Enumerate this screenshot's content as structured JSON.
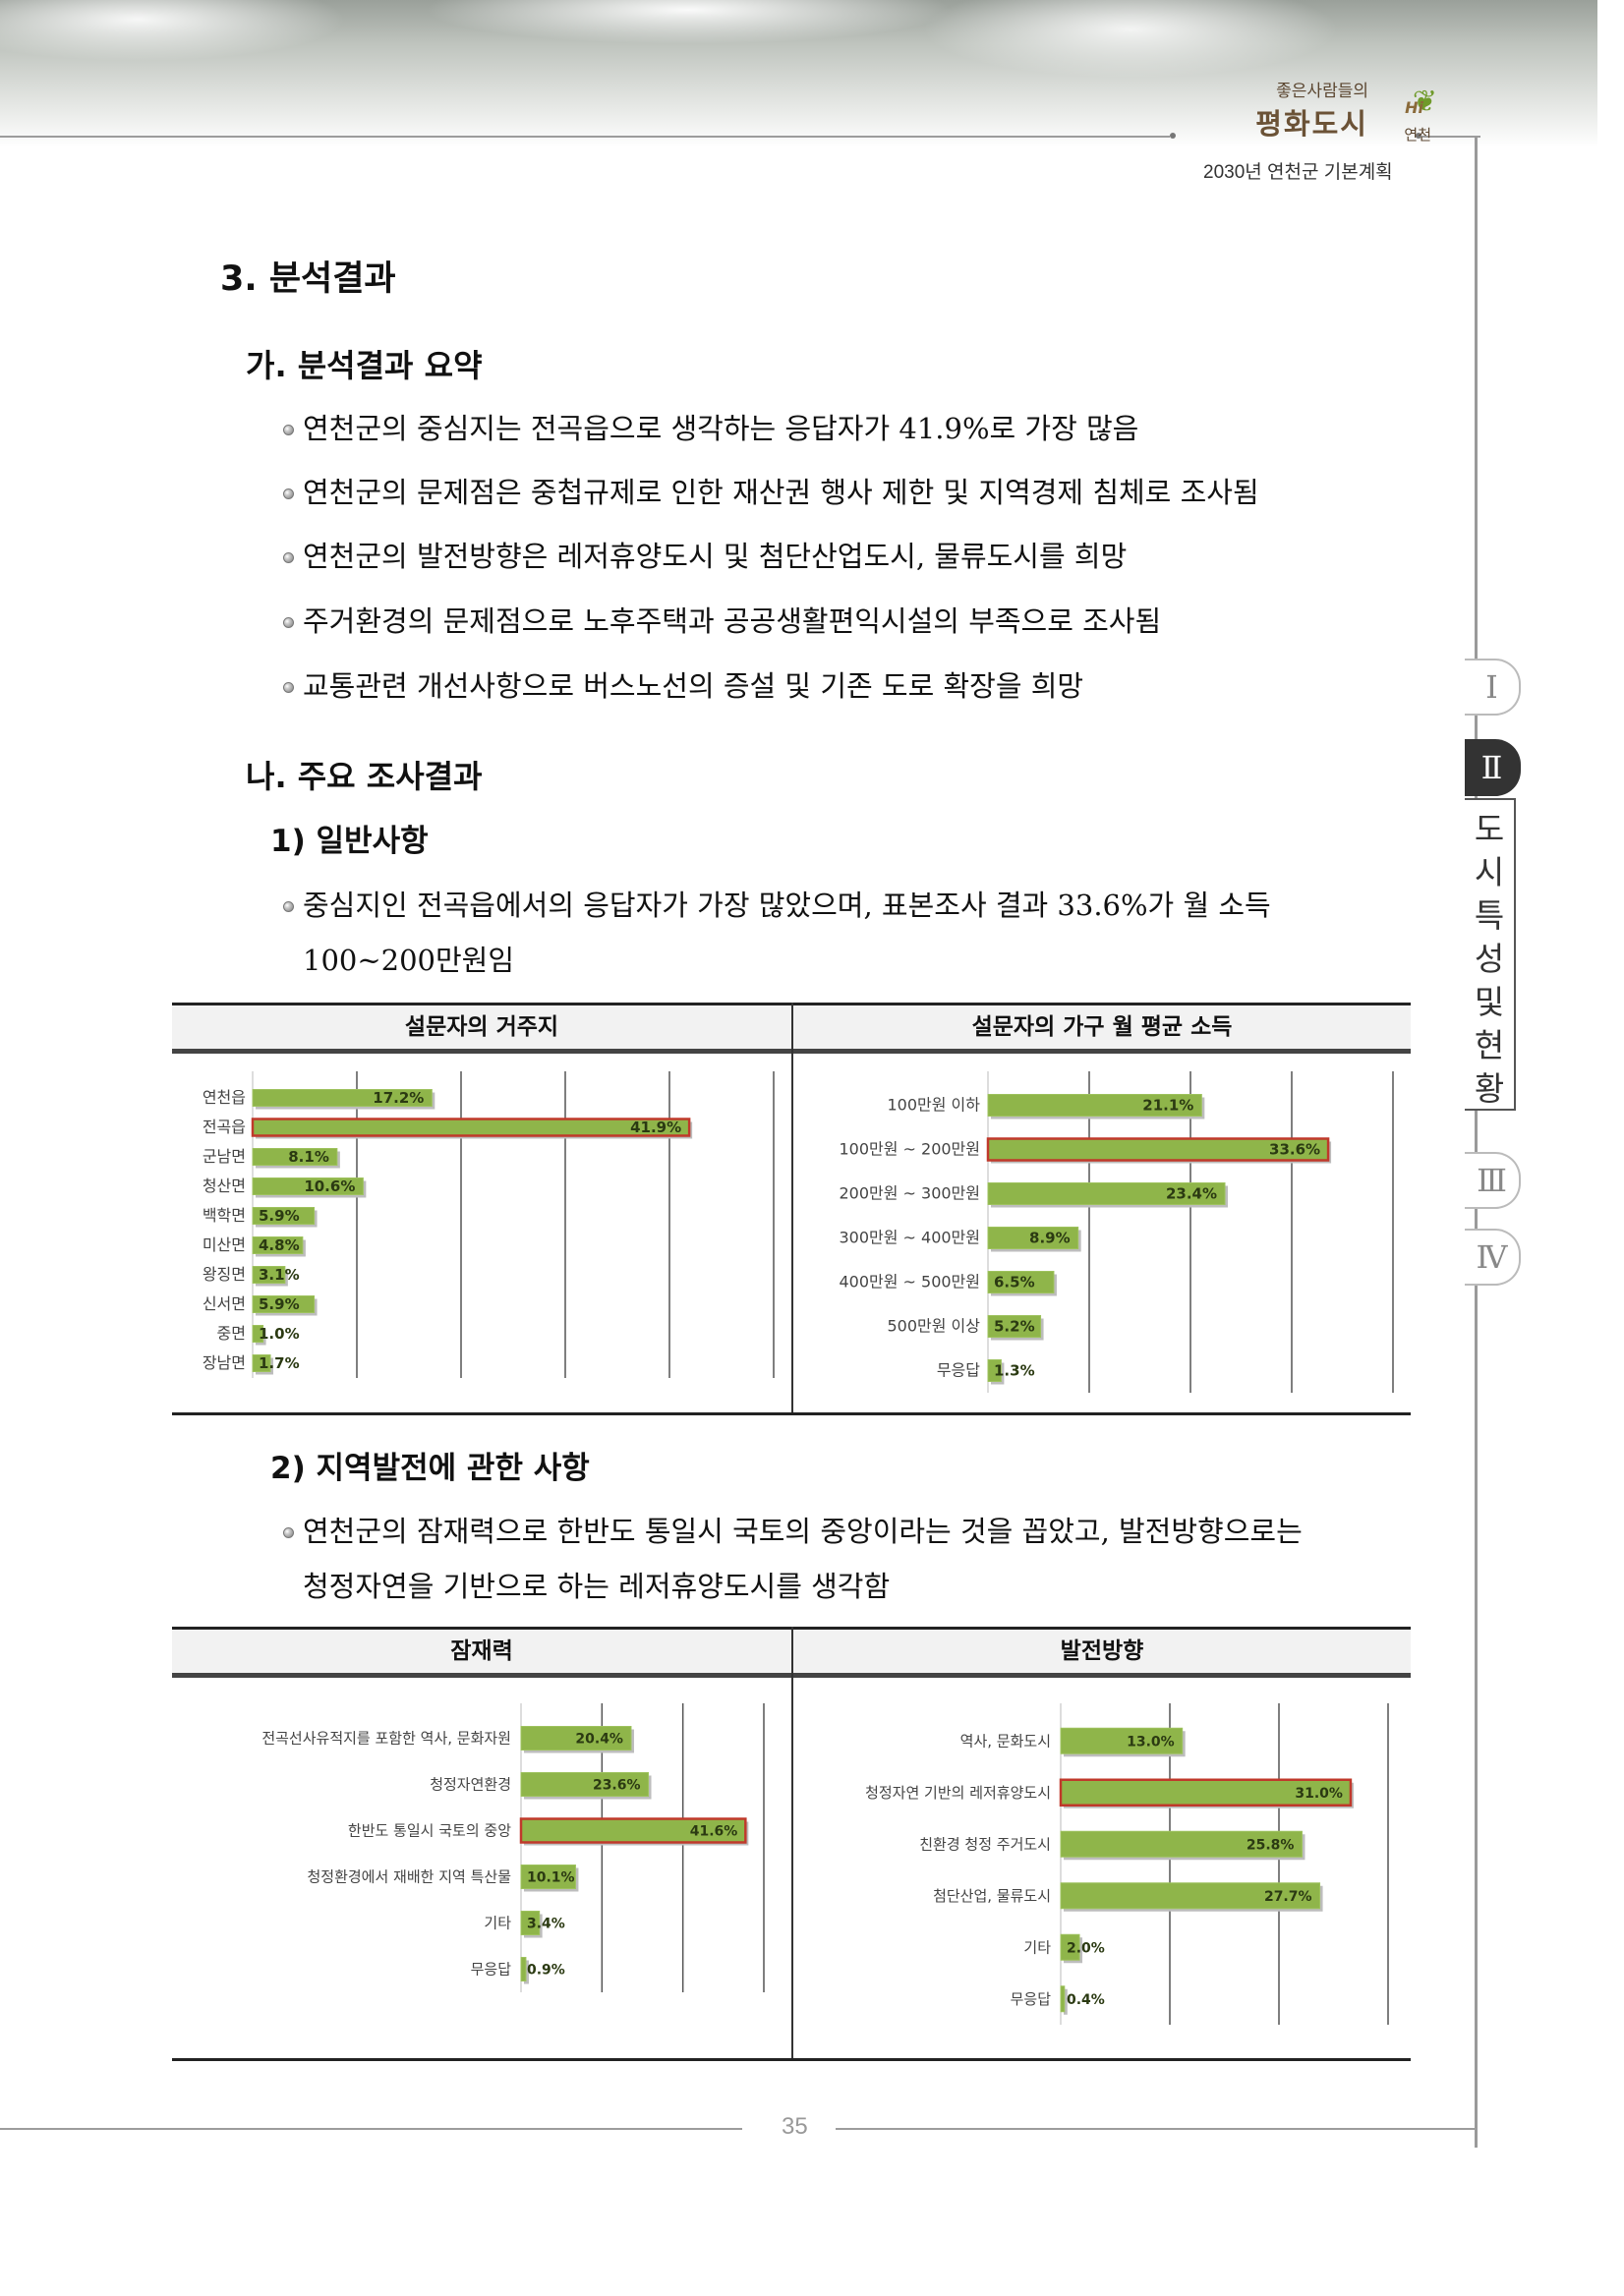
{
  "header": {
    "logo_top": "좋은사람들의",
    "logo_main": "평화도시",
    "logo_hi": "Hi",
    "logo_city": "연천",
    "subtitle": "2030년 연천군 기본계획"
  },
  "section": {
    "title": "3. 분석결과",
    "sub_a": "가. 분석결과 요약",
    "bullets_a": [
      "연천군의 중심지는 전곡읍으로 생각하는 응답자가 41.9%로 가장 많음",
      "연천군의 문제점은 중첩규제로 인한 재산권 행사 제한 및 지역경제 침체로 조사됨",
      "연천군의 발전방향은 레저휴양도시 및 첨단산업도시, 물류도시를 희망",
      "주거환경의 문제점으로 노후주택과 공공생활편익시설의 부족으로 조사됨",
      "교통관련 개선사항으로 버스노선의 증설 및 기존 도로 확장을 희망"
    ],
    "sub_b": "나. 주요 조사결과",
    "item1": "1) 일반사항",
    "item1_bullet_l1": "중심지인 전곡읍에서의 응답자가 가장 많았으며, 표본조사 결과 33.6%가 월 소득",
    "item1_bullet_l2": "100~200만원임",
    "table1_head_left": "설문자의 거주지",
    "table1_head_right": "설문자의 가구 월 평균 소득",
    "item2": "2) 지역발전에 관한 사항",
    "item2_bullet_l1": "연천군의 잠재력으로 한반도 통일시 국토의 중앙이라는 것을 꼽았고, 발전방향으로는",
    "item2_bullet_l2": "청정자연을 기반으로 하는 레저휴양도시를 생각함",
    "table2_head_left": "잠재력",
    "table2_head_right": "발전방향"
  },
  "side_tabs": {
    "tab1": "Ⅰ",
    "tab2": "Ⅱ",
    "label": [
      "도",
      "시",
      "특",
      "성",
      "및",
      "현",
      "황"
    ],
    "tab3": "Ⅲ",
    "tab4": "Ⅳ"
  },
  "page_number": "35",
  "colors": {
    "bar": "#8fb54a",
    "highlight": "#c0392b",
    "grid": "#333333"
  },
  "chart_data": [
    {
      "type": "bar",
      "orientation": "horizontal",
      "title": "설문자의 거주지",
      "categories": [
        "연천읍",
        "전곡읍",
        "군남면",
        "청산면",
        "백학면",
        "미산면",
        "왕징면",
        "신서면",
        "중면",
        "장남면"
      ],
      "values": [
        17.2,
        41.9,
        8.1,
        10.6,
        5.9,
        4.8,
        3.1,
        5.9,
        1.0,
        1.7
      ],
      "labels": [
        "17.2%",
        "41.9%",
        "8.1%",
        "10.6%",
        "5.9%",
        "4.8%",
        "3.1%",
        "5.9%",
        "1.0%",
        "1.7%"
      ],
      "highlight_index": 1,
      "xlim": [
        0,
        50
      ]
    },
    {
      "type": "bar",
      "orientation": "horizontal",
      "title": "설문자의 가구 월 평균 소득",
      "categories": [
        "100만원 이하",
        "100만원 ~ 200만원",
        "200만원 ~ 300만원",
        "300만원 ~ 400만원",
        "400만원 ~ 500만원",
        "500만원 이상",
        "무응답"
      ],
      "values": [
        21.1,
        33.6,
        23.4,
        8.9,
        6.5,
        5.2,
        1.3
      ],
      "labels": [
        "21.1%",
        "33.6%",
        "23.4%",
        "8.9%",
        "6.5%",
        "5.2%",
        "1.3%"
      ],
      "highlight_index": 1,
      "xlim": [
        0,
        40
      ]
    },
    {
      "type": "bar",
      "orientation": "horizontal",
      "title": "잠재력",
      "categories": [
        "전곡선사유적지를 포함한 역사, 문화자원",
        "청정자연환경",
        "한반도 통일시 국토의 중앙",
        "청정환경에서 재배한 지역 특산물",
        "기타",
        "무응답"
      ],
      "values": [
        20.4,
        23.6,
        41.6,
        10.1,
        3.4,
        0.9
      ],
      "labels": [
        "20.4%",
        "23.6%",
        "41.6%",
        "10.1%",
        "3.4%",
        "0.9%"
      ],
      "highlight_index": 2,
      "xlim": [
        0,
        45
      ]
    },
    {
      "type": "bar",
      "orientation": "horizontal",
      "title": "발전방향",
      "categories": [
        "역사, 문화도시",
        "청정자연 기반의 레저휴양도시",
        "친환경 청정 주거도시",
        "첨단산업, 물류도시",
        "기타",
        "무응답"
      ],
      "values": [
        13.0,
        31.0,
        25.8,
        27.7,
        2.0,
        0.4
      ],
      "labels": [
        "13.0%",
        "31.0%",
        "25.8%",
        "27.7%",
        "2.0%",
        "0.4%"
      ],
      "highlight_index": 1,
      "xlim": [
        0,
        35
      ]
    }
  ]
}
